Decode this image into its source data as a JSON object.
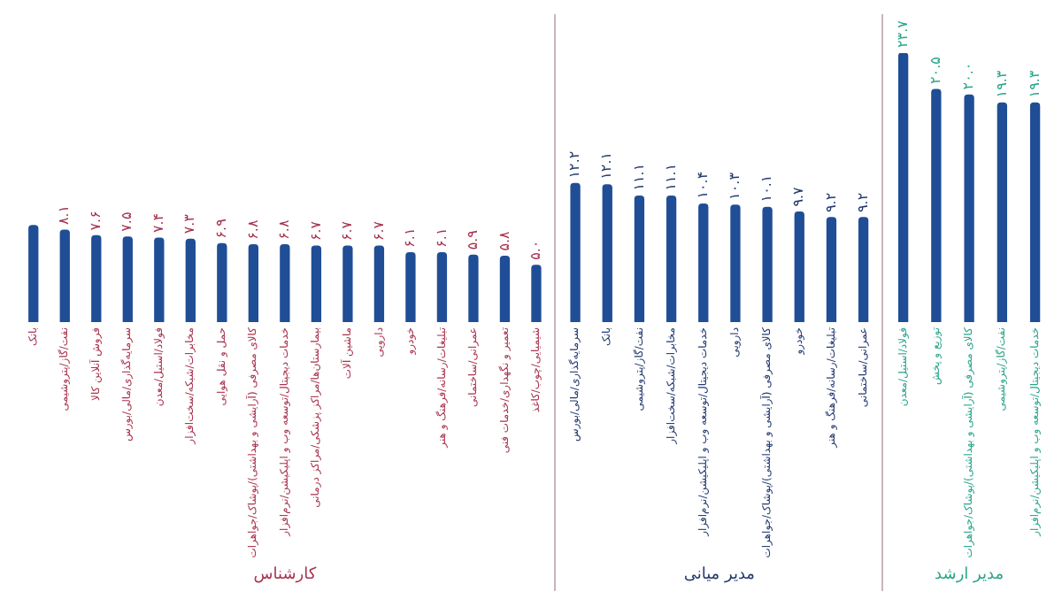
{
  "chart_data": [
    {
      "type": "bar",
      "xlabel": "کارشناس",
      "categories": [
        "بانک",
        "نفت/گاز/پتروشیمی",
        "فروش آنلاین کالا",
        "سرمایه‌گذاری/مالی/بورس",
        "فولاد/استیل/معدن",
        "مخابرات/شبکه/سخت‌افزار",
        "حمل و نقل هوایی",
        "کالای مصرفی (آرایشی و بهداشتی)/پوشاک/جواهرات",
        "خدمات دیجیتال/توسعه وب و اپلیکیشن/نرم‌افزار",
        "بیمارستان‌ها/مراکز پزشکی/مراکز درمانی",
        "ماشین آلات",
        "دارویی",
        "خودرو",
        "تبلیغات/رسانه/فرهنگ و هنر",
        "عمرانی/ساختمانی",
        "تعمیر و نگهداری/خدمات فنی",
        "شیمیایی/چوب/کاغذ"
      ],
      "values": [
        8.5,
        8.1,
        7.6,
        7.5,
        7.4,
        7.3,
        6.9,
        6.8,
        6.8,
        6.7,
        6.7,
        6.7,
        6.1,
        6.1,
        5.9,
        5.8,
        5.0
      ],
      "value_labels": [
        null,
        "۸.۱",
        "۷.۶",
        "۷.۵",
        "۷.۴",
        "۷.۳",
        "۶.۹",
        "۶.۸",
        "۶.۸",
        "۶.۷",
        "۶.۷",
        "۶.۷",
        "۶.۱",
        "۶.۱",
        "۵.۹",
        "۵.۸",
        "۵.۰"
      ],
      "color": "#1f4e96"
    },
    {
      "type": "bar",
      "xlabel": "مدیر میانی",
      "categories": [
        "سرمایه‌گذاری/مالی/بورس",
        "بانک",
        "نفت/گاز/پتروشیمی",
        "مخابرات/شبکه/سخت‌افزار",
        "خدمات دیجیتال/توسعه وب و اپلیکیشن/نرم‌افزار",
        "دارویی",
        "کالای مصرفی (آرایشی و بهداشتی)/پوشاک/جواهرات",
        "خودرو",
        "تبلیغات/رسانه/فرهنگ و هنر",
        "عمرانی/ساختمانی"
      ],
      "values": [
        12.2,
        12.1,
        11.1,
        11.1,
        10.4,
        10.3,
        10.1,
        9.7,
        9.2,
        9.2
      ],
      "value_labels": [
        "۱۲.۲",
        "۱۲.۱",
        "۱۱.۱",
        "۱۱.۱",
        "۱۰.۴",
        "۱۰.۳",
        "۱۰.۱",
        "۹.۷",
        "۹.۲",
        "۹.۲"
      ],
      "color": "#1f4e96"
    },
    {
      "type": "bar",
      "xlabel": "مدیر ارشد",
      "categories": [
        "فولاد/استیل/معدن",
        "توزیع و پخش",
        "کالای مصرفی (آرایشی و بهداشتی)/پوشاک/جواهرات",
        "نفت/گاز/پتروشیمی",
        "خدمات دیجیتال/توسعه وب و اپلیکیشن/نرم‌افزار"
      ],
      "values": [
        23.7,
        20.5,
        20.0,
        19.3,
        19.3
      ],
      "value_labels": [
        "۲۳.۷",
        "۲۰.۵",
        "۲۰.۰",
        "۱۹.۳",
        "۱۹.۳"
      ],
      "color": "#1f4e96"
    }
  ]
}
